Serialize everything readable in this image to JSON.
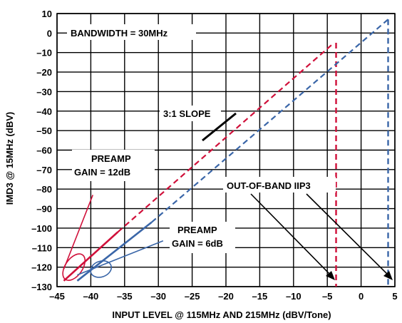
{
  "chart_data": {
    "type": "line",
    "title": "",
    "xlabel": "INPUT LEVEL @ 115MHz AND 215MHz (dBV/Tone)",
    "ylabel": "IMD3 @ 15MHz (dBV)",
    "xlim": [
      -45,
      5
    ],
    "ylim": [
      -130,
      10
    ],
    "x_ticks": [
      -45,
      -40,
      -35,
      -30,
      -25,
      -20,
      -15,
      -10,
      -5,
      0,
      5
    ],
    "x_tick_labels": [
      "–45",
      "–40",
      "–35",
      "–30",
      "–25",
      "–20",
      "–15",
      "–10",
      "–5",
      "0",
      "5"
    ],
    "y_ticks": [
      10,
      0,
      -10,
      -20,
      -30,
      -40,
      -50,
      -60,
      -70,
      -80,
      -90,
      -100,
      -110,
      -120,
      -130
    ],
    "y_tick_labels": [
      "10",
      "0",
      "–10",
      "–20",
      "–30",
      "–40",
      "–50",
      "–60",
      "–70",
      "–80",
      "–90",
      "–100",
      "–110",
      "–120",
      "–130"
    ],
    "grid": true,
    "colors": {
      "red": "#d0103a",
      "blue": "#3a66a8",
      "black": "#000000"
    },
    "series": [
      {
        "color": "#d0103a",
        "measured": {
          "x": [
            -44,
            -36
          ],
          "y": [
            -127,
            -102
          ]
        },
        "extrapolated": {
          "x": [
            -36,
            -4
          ],
          "y": [
            -102,
            -5
          ]
        },
        "fundamental": {
          "x": [
            -44,
            -39.7
          ],
          "y": [
            -121,
            -83
          ]
        },
        "vertical_marker_x": -3.7,
        "ellipse_center": {
          "x": -42.5,
          "y": -120
        }
      },
      {
        "color": "#3a66a8",
        "measured": {
          "x": [
            -42,
            -31
          ],
          "y": [
            -127,
            -97
          ]
        },
        "extrapolated": {
          "x": [
            -31,
            4
          ],
          "y": [
            -97,
            7
          ]
        },
        "fundamental": {
          "x": [
            -42,
            -29.3
          ],
          "y": [
            -124,
            -106.5
          ]
        },
        "vertical_marker_x": 4,
        "ellipse_center": {
          "x": -38.5,
          "y": -121
        }
      }
    ],
    "annotations": [
      {
        "text": "BANDWIDTH = 30MHz"
      },
      {
        "text": "3:1 SLOPE"
      },
      {
        "text": "PREAMP",
        "text2": "GAIN = 12dB"
      },
      {
        "text": "PREAMP",
        "text2": "GAIN = 6dB"
      },
      {
        "text": "OUT-OF-BAND IIP3"
      }
    ]
  }
}
